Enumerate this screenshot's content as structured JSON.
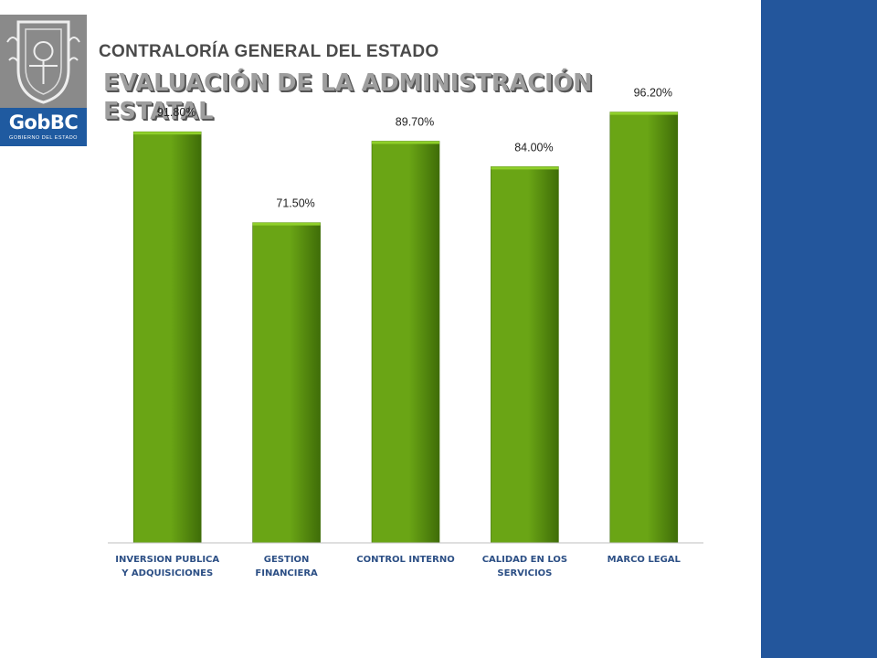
{
  "header": {
    "org_title": "CONTRALORÍA GENERAL DEL ESTADO",
    "title_line1": "EVALUACIÓN DE LA ADMINISTRACIÓN",
    "title_line2": "ESTATAL"
  },
  "logo": {
    "icon": "state-seal-icon",
    "text": "GobBC",
    "subtext": "GOBIERNO DEL ESTADO"
  },
  "colors": {
    "bar": "#6aa515",
    "bar_dark": "#3f6d08",
    "side_bar": "#23569c",
    "category_text": "#2c4f85"
  },
  "chart_data": {
    "type": "bar",
    "categories": [
      [
        "INVERSION PUBLICA",
        "Y ADQUISICIONES"
      ],
      [
        "GESTION",
        "FINANCIERA"
      ],
      [
        "CONTROL INTERNO"
      ],
      [
        "CALIDAD EN LOS",
        "SERVICIOS"
      ],
      [
        "MARCO LEGAL"
      ]
    ],
    "values": [
      91.8,
      71.5,
      89.7,
      84.0,
      96.2
    ],
    "data_labels": [
      "91.80%",
      "71.50%",
      "89.70%",
      "84.00%",
      "96.20%"
    ],
    "title": "",
    "xlabel": "",
    "ylabel": "",
    "ylim": [
      0,
      100
    ],
    "grid": false,
    "legend": "none"
  }
}
